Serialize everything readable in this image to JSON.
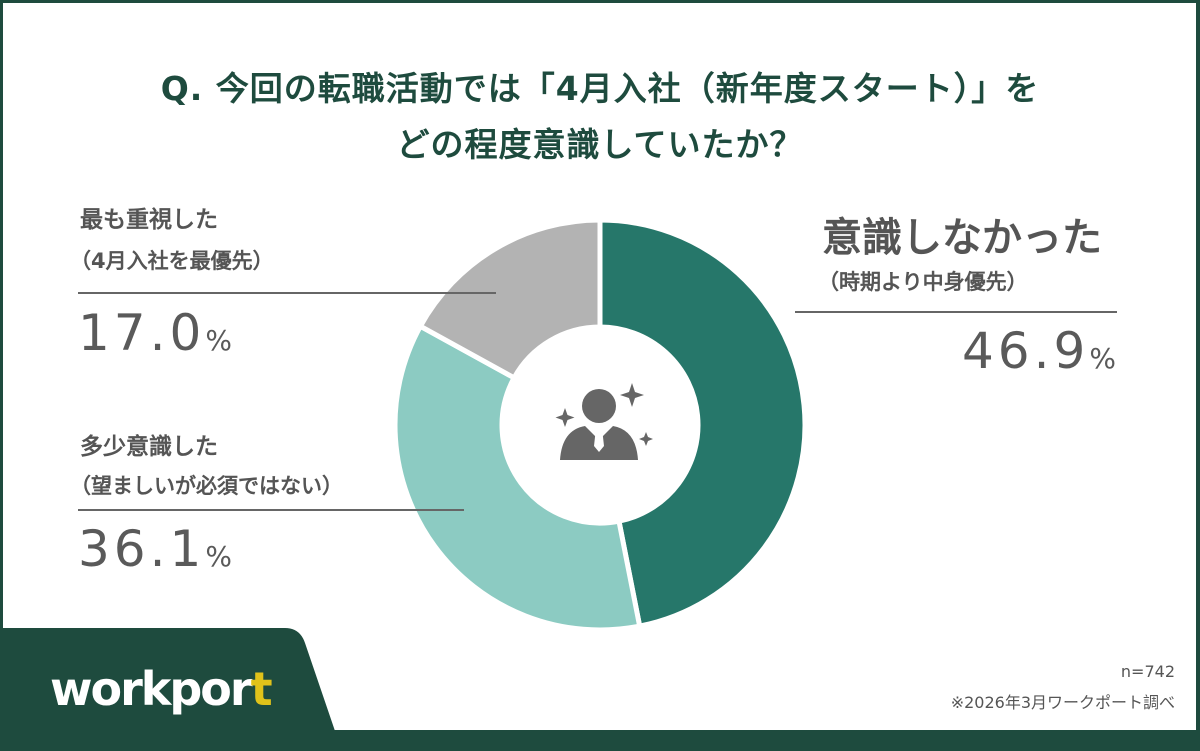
{
  "title_line1": "Q. 今回の転職活動では「4月入社（新年度スタート）」を",
  "title_line2": "どの程度意識していたか？",
  "chart_data": {
    "type": "pie",
    "donut": true,
    "title": "Q. 今回の転職活動では「4月入社（新年度スタート）」をどの程度意識していたか？",
    "slices": [
      {
        "label": "意識しなかった",
        "sublabel": "（時期より中身優先）",
        "value": 46.9,
        "display": "46.9",
        "color": "#26776a"
      },
      {
        "label": "多少意識した",
        "sublabel": "（望ましいが必須ではない）",
        "value": 36.1,
        "display": "36.1",
        "color": "#8ccbc2"
      },
      {
        "label": "最も重視した",
        "sublabel": "（4月入社を最優先）",
        "value": 17.0,
        "display": "17.0",
        "color": "#b3b3b3"
      }
    ],
    "unit": "%",
    "center_icon": "businessperson-sparkle-icon"
  },
  "footer": {
    "n": "n=742",
    "source": "※2026年3月ワークポート調べ",
    "logo_main": "workpor",
    "logo_t": "t"
  },
  "colors": {
    "brand": "#1e4b3e",
    "accent": "#e0c21a"
  }
}
